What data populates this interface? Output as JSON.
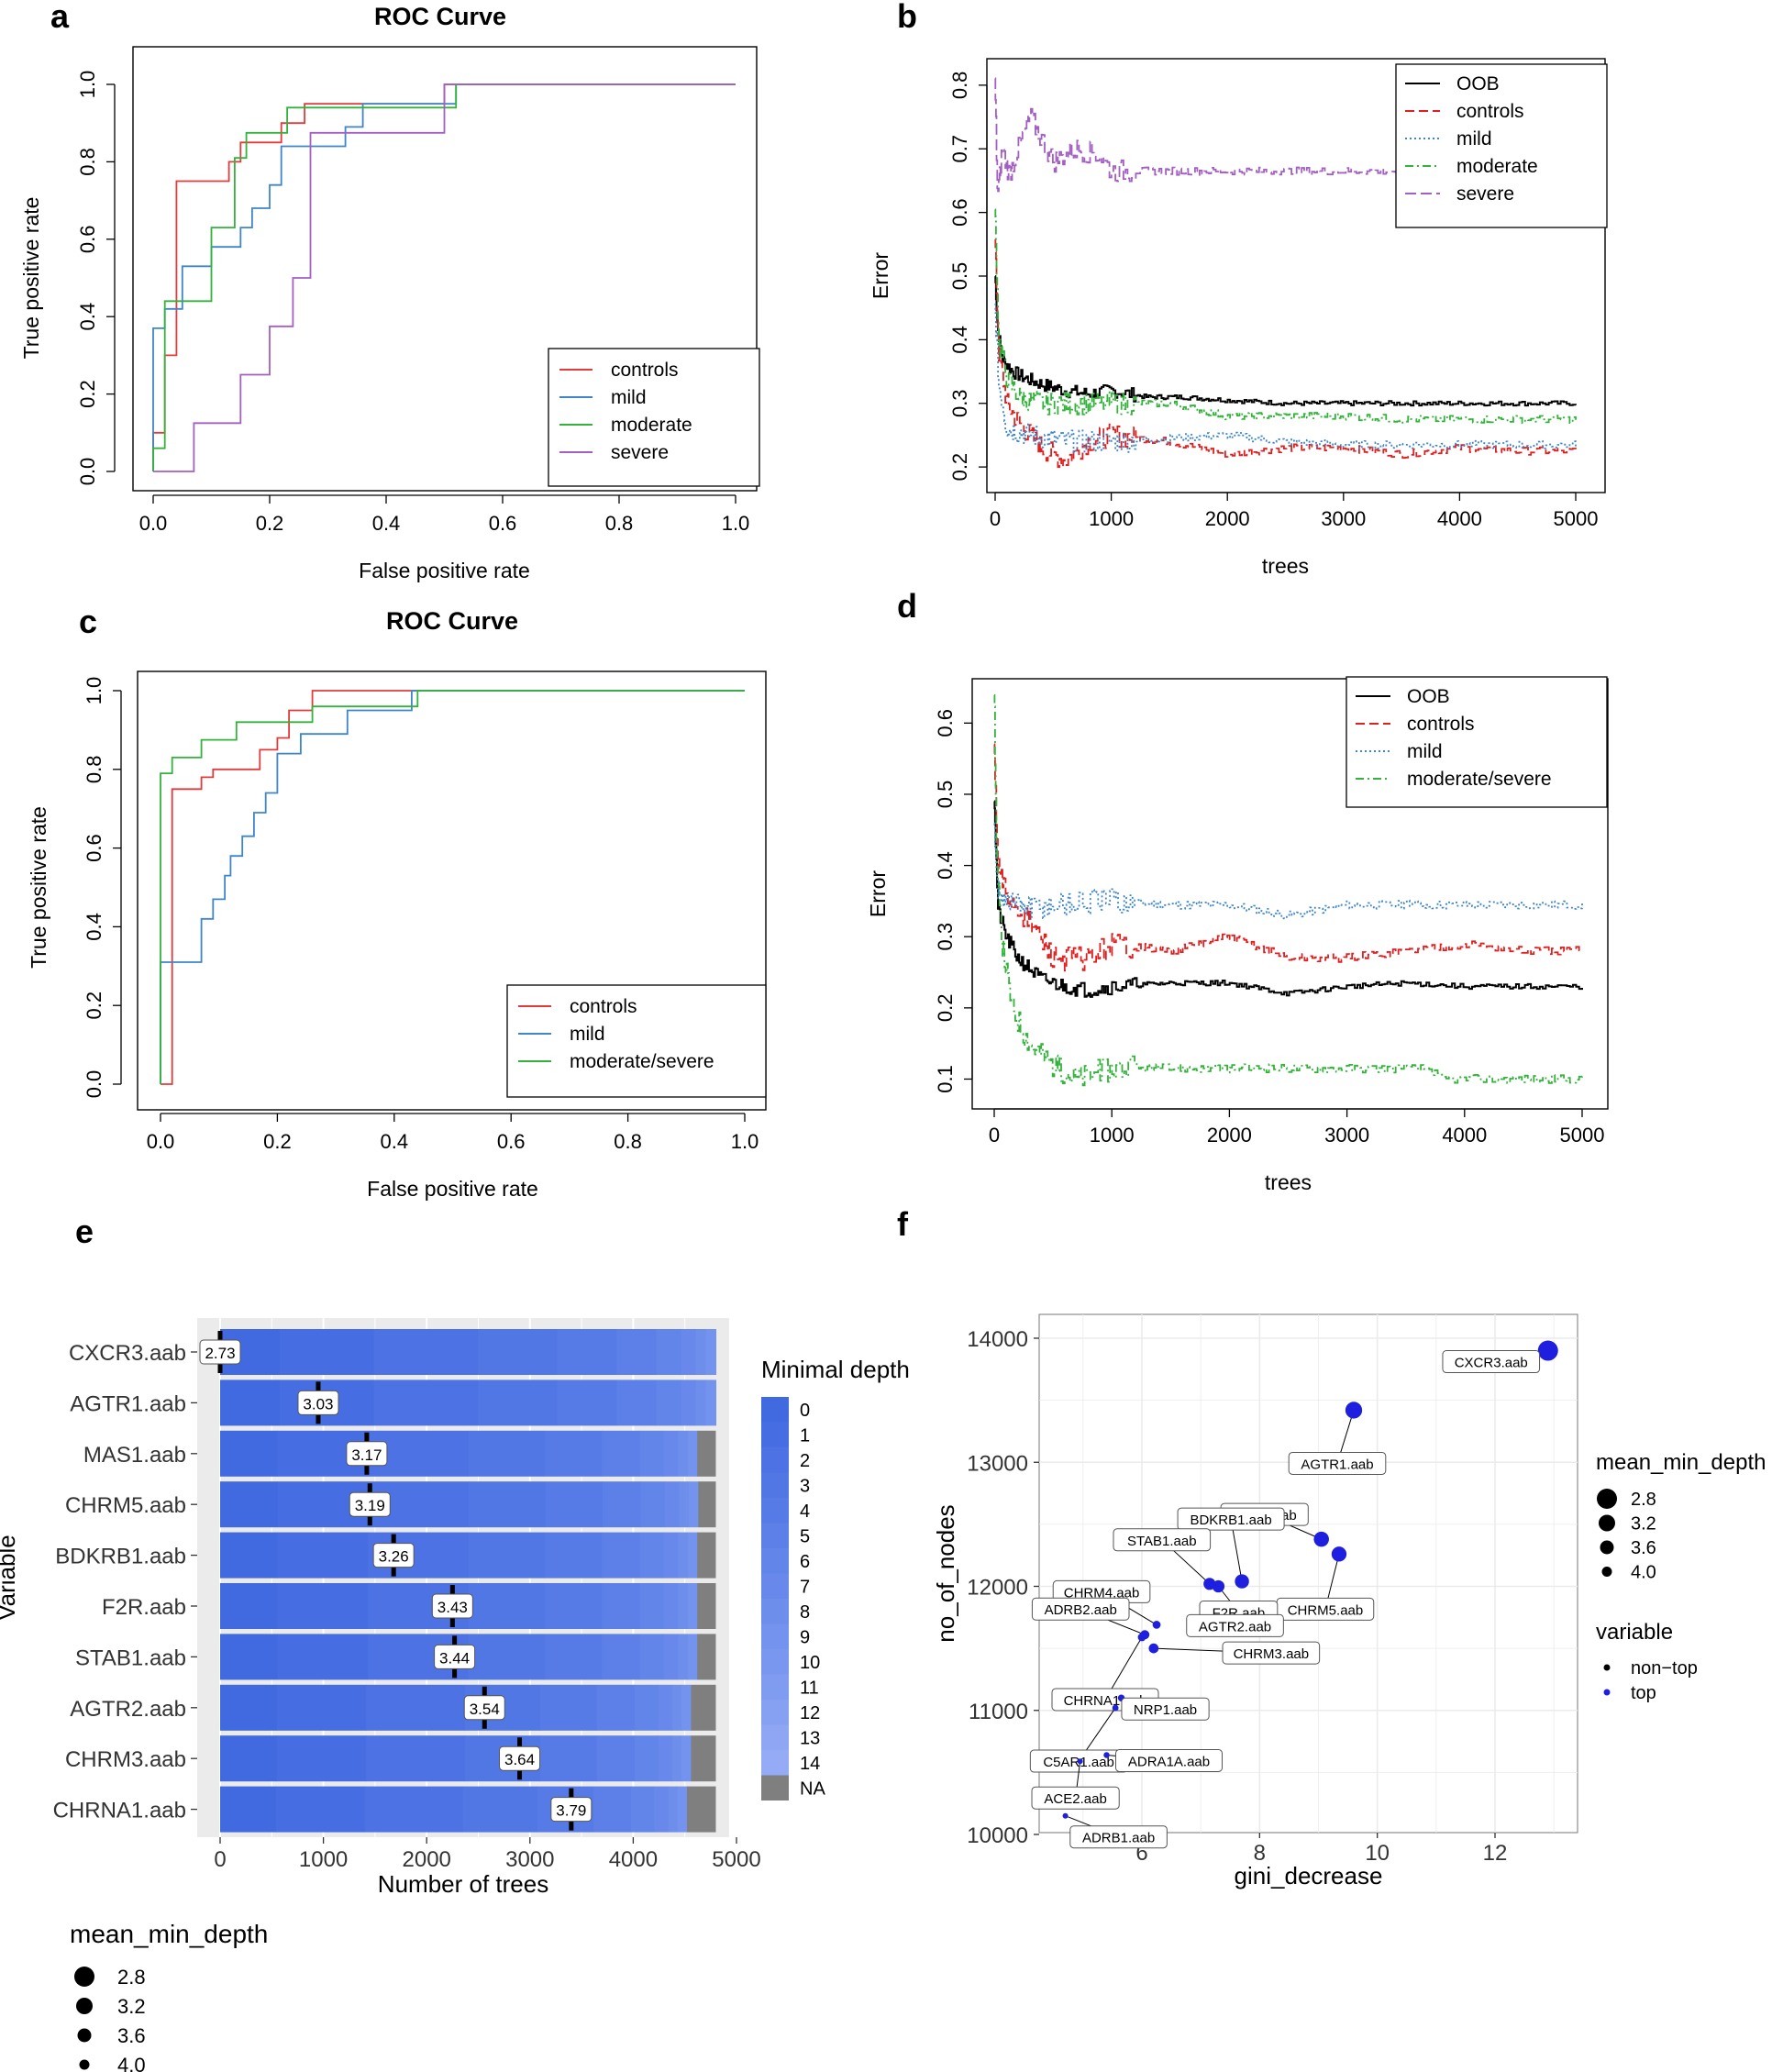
{
  "chart_data": [
    {
      "panel": "a",
      "type": "line",
      "title": "ROC Curve",
      "xlabel": "False positive rate",
      "ylabel": "True positive rate",
      "xlim": [
        0,
        1
      ],
      "ylim": [
        0,
        1
      ],
      "xticks": [
        "0.0",
        "0.2",
        "0.4",
        "0.6",
        "0.8",
        "1.0"
      ],
      "yticks": [
        "0.0",
        "0.2",
        "0.4",
        "0.6",
        "0.8",
        "1.0"
      ],
      "legend": "bottom-right",
      "series": [
        {
          "name": "controls",
          "color": "#e23b3b",
          "x": [
            0,
            0,
            0.02,
            0.02,
            0.04,
            0.04,
            0.07,
            0.07,
            0.13,
            0.13,
            0.15,
            0.15,
            0.22,
            0.22,
            0.26,
            0.26,
            0.35,
            0.35,
            0.5,
            0.5,
            1.0
          ],
          "y": [
            0,
            0.1,
            0.1,
            0.3,
            0.3,
            0.75,
            0.75,
            0.75,
            0.75,
            0.8,
            0.8,
            0.85,
            0.85,
            0.9,
            0.9,
            0.95,
            0.95,
            0.95,
            0.95,
            1.0,
            1.0
          ]
        },
        {
          "name": "mild",
          "color": "#3f86c9",
          "x": [
            0,
            0,
            0.02,
            0.02,
            0.05,
            0.05,
            0.1,
            0.1,
            0.15,
            0.15,
            0.17,
            0.17,
            0.2,
            0.2,
            0.22,
            0.22,
            0.28,
            0.28,
            0.33,
            0.33,
            0.36,
            0.36,
            0.5,
            0.5,
            0.52,
            0.52,
            1.0
          ],
          "y": [
            0,
            0.37,
            0.37,
            0.42,
            0.42,
            0.53,
            0.53,
            0.58,
            0.58,
            0.63,
            0.63,
            0.68,
            0.68,
            0.74,
            0.74,
            0.84,
            0.84,
            0.84,
            0.84,
            0.89,
            0.89,
            0.95,
            0.95,
            0.95,
            0.95,
            1.0,
            1.0
          ]
        },
        {
          "name": "moderate",
          "color": "#33b33b",
          "x": [
            0,
            0,
            0.02,
            0.02,
            0.04,
            0.04,
            0.1,
            0.1,
            0.14,
            0.14,
            0.16,
            0.16,
            0.23,
            0.23,
            0.35,
            0.35,
            0.52,
            0.52,
            1.0
          ],
          "y": [
            0,
            0.06,
            0.06,
            0.44,
            0.44,
            0.44,
            0.44,
            0.63,
            0.63,
            0.81,
            0.81,
            0.875,
            0.875,
            0.94,
            0.94,
            0.94,
            0.94,
            1.0,
            1.0
          ]
        },
        {
          "name": "severe",
          "color": "#a35fc2",
          "x": [
            0,
            0,
            0.07,
            0.07,
            0.15,
            0.15,
            0.2,
            0.2,
            0.24,
            0.24,
            0.27,
            0.27,
            0.3,
            0.3,
            0.5,
            0.5,
            1.0
          ],
          "y": [
            0,
            0,
            0,
            0.125,
            0.125,
            0.25,
            0.25,
            0.375,
            0.375,
            0.5,
            0.5,
            0.875,
            0.875,
            0.875,
            0.875,
            1.0,
            1.0
          ]
        }
      ]
    },
    {
      "panel": "b",
      "type": "line",
      "title": "",
      "xlabel": "trees",
      "ylabel": "Error",
      "xlim": [
        0,
        5000
      ],
      "ylim": [
        0.18,
        0.82
      ],
      "xticks": [
        "0",
        "1000",
        "2000",
        "3000",
        "4000",
        "5000"
      ],
      "yticks": [
        "0.2",
        "0.3",
        "0.4",
        "0.5",
        "0.6",
        "0.7",
        "0.8"
      ],
      "legend": "top-right",
      "series": [
        {
          "name": "OOB",
          "color": "#000000",
          "x": [
            0,
            20,
            60,
            150,
            250,
            400,
            600,
            800,
            1000,
            1300,
            1600,
            2000,
            2500,
            3000,
            3500,
            4000,
            4500,
            5000
          ],
          "y": [
            0.5,
            0.42,
            0.37,
            0.35,
            0.34,
            0.33,
            0.32,
            0.315,
            0.32,
            0.31,
            0.31,
            0.305,
            0.3,
            0.3,
            0.3,
            0.3,
            0.3,
            0.3
          ]
        },
        {
          "name": "controls",
          "color": "#e02020",
          "x": [
            0,
            30,
            100,
            200,
            400,
            600,
            800,
            1000,
            1500,
            2000,
            2500,
            3000,
            3500,
            4000,
            4500,
            5000
          ],
          "y": [
            0.55,
            0.38,
            0.3,
            0.27,
            0.23,
            0.21,
            0.24,
            0.25,
            0.24,
            0.22,
            0.23,
            0.23,
            0.22,
            0.23,
            0.225,
            0.225
          ]
        },
        {
          "name": "mild",
          "color": "#3f86c9",
          "x": [
            0,
            30,
            100,
            300,
            600,
            1000,
            1500,
            2000,
            2500,
            3000,
            3500,
            4000,
            4500,
            5000
          ],
          "y": [
            0.45,
            0.33,
            0.26,
            0.25,
            0.24,
            0.24,
            0.245,
            0.25,
            0.24,
            0.235,
            0.235,
            0.235,
            0.235,
            0.235
          ]
        },
        {
          "name": "moderate",
          "color": "#33b33b",
          "x": [
            0,
            30,
            100,
            200,
            400,
            700,
            1000,
            1500,
            2000,
            2500,
            3000,
            3500,
            4000,
            4500,
            5000
          ],
          "y": [
            0.6,
            0.4,
            0.34,
            0.31,
            0.3,
            0.3,
            0.3,
            0.3,
            0.28,
            0.28,
            0.28,
            0.275,
            0.275,
            0.275,
            0.275
          ]
        },
        {
          "name": "severe",
          "color": "#a35fc2",
          "x": [
            0,
            20,
            60,
            120,
            200,
            300,
            500,
            700,
            900,
            1000,
            2000,
            3000,
            4000,
            5000
          ],
          "y": [
            0.8,
            0.62,
            0.7,
            0.66,
            0.7,
            0.75,
            0.68,
            0.7,
            0.69,
            0.665,
            0.665,
            0.665,
            0.665,
            0.665
          ]
        }
      ]
    },
    {
      "panel": "c",
      "type": "line",
      "title": "ROC Curve",
      "xlabel": "False positive rate",
      "ylabel": "True positive rate",
      "xlim": [
        0,
        1
      ],
      "ylim": [
        0,
        1
      ],
      "xticks": [
        "0.0",
        "0.2",
        "0.4",
        "0.6",
        "0.8",
        "1.0"
      ],
      "yticks": [
        "0.0",
        "0.2",
        "0.4",
        "0.6",
        "0.8",
        "1.0"
      ],
      "legend": "bottom-right",
      "series": [
        {
          "name": "controls",
          "color": "#e23b3b",
          "x": [
            0,
            0.02,
            0.02,
            0.07,
            0.07,
            0.09,
            0.09,
            0.17,
            0.17,
            0.2,
            0.2,
            0.22,
            0.22,
            0.26,
            0.26,
            0.43,
            0.43,
            1.0
          ],
          "y": [
            0,
            0,
            0.75,
            0.75,
            0.78,
            0.78,
            0.8,
            0.8,
            0.85,
            0.85,
            0.88,
            0.88,
            0.95,
            0.95,
            1.0,
            1.0,
            1.0,
            1.0
          ]
        },
        {
          "name": "mild",
          "color": "#3f86c9",
          "x": [
            0,
            0,
            0.07,
            0.07,
            0.09,
            0.09,
            0.11,
            0.11,
            0.12,
            0.12,
            0.14,
            0.14,
            0.16,
            0.16,
            0.18,
            0.18,
            0.2,
            0.2,
            0.24,
            0.24,
            0.32,
            0.32,
            0.43,
            0.43,
            1.0
          ],
          "y": [
            0,
            0.31,
            0.31,
            0.42,
            0.42,
            0.47,
            0.47,
            0.53,
            0.53,
            0.58,
            0.58,
            0.63,
            0.63,
            0.69,
            0.69,
            0.74,
            0.74,
            0.84,
            0.84,
            0.89,
            0.89,
            0.95,
            0.95,
            1.0,
            1.0
          ]
        },
        {
          "name": "moderate/severe",
          "color": "#33b33b",
          "x": [
            0,
            0,
            0.02,
            0.02,
            0.07,
            0.07,
            0.13,
            0.13,
            0.26,
            0.26,
            0.44,
            0.44,
            1.0
          ],
          "y": [
            0,
            0.79,
            0.79,
            0.83,
            0.83,
            0.875,
            0.875,
            0.92,
            0.92,
            0.96,
            0.96,
            1.0,
            1.0
          ]
        }
      ]
    },
    {
      "panel": "d",
      "type": "line",
      "title": "",
      "xlabel": "trees",
      "ylabel": "Error",
      "xlim": [
        0,
        5000
      ],
      "ylim": [
        0.08,
        0.67
      ],
      "xticks": [
        "0",
        "1000",
        "2000",
        "3000",
        "4000",
        "5000"
      ],
      "yticks": [
        "0.1",
        "0.2",
        "0.3",
        "0.4",
        "0.5",
        "0.6"
      ],
      "legend": "top-right",
      "series": [
        {
          "name": "OOB",
          "color": "#000000",
          "x": [
            0,
            30,
            100,
            200,
            400,
            600,
            800,
            1000,
            1500,
            2000,
            2500,
            3000,
            3500,
            4000,
            4500,
            5000
          ],
          "y": [
            0.5,
            0.34,
            0.3,
            0.27,
            0.24,
            0.23,
            0.225,
            0.23,
            0.235,
            0.235,
            0.22,
            0.23,
            0.235,
            0.23,
            0.23,
            0.23
          ]
        },
        {
          "name": "controls",
          "color": "#e02020",
          "x": [
            0,
            30,
            100,
            300,
            500,
            800,
            1000,
            1500,
            2000,
            2500,
            3000,
            3500,
            4000,
            4500,
            5000
          ],
          "y": [
            0.56,
            0.4,
            0.36,
            0.32,
            0.27,
            0.27,
            0.29,
            0.28,
            0.3,
            0.27,
            0.27,
            0.28,
            0.29,
            0.28,
            0.28
          ]
        },
        {
          "name": "mild",
          "color": "#3f86c9",
          "x": [
            0,
            30,
            100,
            300,
            600,
            1000,
            1500,
            2000,
            2500,
            3000,
            3500,
            4000,
            4500,
            5000
          ],
          "y": [
            0.45,
            0.37,
            0.35,
            0.34,
            0.345,
            0.35,
            0.345,
            0.345,
            0.33,
            0.345,
            0.345,
            0.345,
            0.345,
            0.345
          ]
        },
        {
          "name": "moderate/severe",
          "color": "#33b33b",
          "x": [
            0,
            20,
            60,
            150,
            300,
            500,
            700,
            1000,
            2000,
            3000,
            3700,
            3800,
            4500,
            5000
          ],
          "y": [
            0.65,
            0.4,
            0.3,
            0.2,
            0.15,
            0.12,
            0.1,
            0.115,
            0.115,
            0.115,
            0.115,
            0.1,
            0.1,
            0.1
          ]
        }
      ]
    },
    {
      "panel": "e",
      "type": "bar",
      "title": "",
      "xlabel": "Number of trees",
      "ylabel": "Variable",
      "xlim": [
        0,
        5000
      ],
      "xticks": [
        "0",
        "1000",
        "2000",
        "3000",
        "4000",
        "5000"
      ],
      "categories": [
        "CXCR3.aab",
        "AGTR1.aab",
        "MAS1.aab",
        "CHRM5.aab",
        "BDKRB1.aab",
        "F2R.aab",
        "STAB1.aab",
        "AGTR2.aab",
        "CHRM3.aab",
        "CHRNA1.aab"
      ],
      "mean_values": [
        2.73,
        3.03,
        3.17,
        3.19,
        3.26,
        3.43,
        3.44,
        3.54,
        3.64,
        3.79
      ],
      "mean_labels": [
        "2.73",
        "3.03",
        "3.17",
        "3.19",
        "3.26",
        "3.43",
        "3.44",
        "3.54",
        "3.64",
        "3.79"
      ],
      "mean_marker_trees": [
        0,
        950,
        1420,
        1450,
        1680,
        2250,
        2270,
        2560,
        2900,
        3400
      ],
      "na_start_trees": [
        4800,
        4800,
        4620,
        4630,
        4620,
        4620,
        4620,
        4560,
        4560,
        4520
      ],
      "total_trees": 4800,
      "legend_title": "Minimal depth",
      "depth_levels": [
        "0",
        "1",
        "2",
        "3",
        "4",
        "5",
        "6",
        "7",
        "8",
        "9",
        "10",
        "11",
        "12",
        "13",
        "14",
        "NA"
      ],
      "depth_colors": [
        "#4169e0",
        "#466ee2",
        "#4c72e3",
        "#5177e5",
        "#577be6",
        "#5c80e8",
        "#6285e9",
        "#6889eb",
        "#6e8eec",
        "#7493ee",
        "#7a97ef",
        "#809cf0",
        "#87a1f2",
        "#8ea6f3",
        "#95abf5",
        "#7f7f7f"
      ],
      "size_legend_title": "mean_min_depth",
      "size_legend_values": [
        "2.8",
        "3.2",
        "3.6",
        "4.0"
      ]
    },
    {
      "panel": "f",
      "type": "scatter",
      "title": "",
      "xlabel": "gini_decrease",
      "ylabel": "no_of_nodes",
      "xlim": [
        4.2,
        13.1
      ],
      "ylim": [
        9980,
        14150
      ],
      "xticks": [
        "6",
        "8",
        "10",
        "12"
      ],
      "yticks": [
        "10000",
        "11000",
        "12000",
        "13000",
        "14000"
      ],
      "points": [
        {
          "label": "CXCR3.aab",
          "x": 12.9,
          "y": 13900,
          "depth": 2.73
        },
        {
          "label": "AGTR1.aab",
          "x": 9.6,
          "y": 13420,
          "depth": 3.03
        },
        {
          "label": "MAS1.aab",
          "x": 9.05,
          "y": 12380,
          "depth": 3.17
        },
        {
          "label": "CHRM5.aab",
          "x": 9.35,
          "y": 12260,
          "depth": 3.19
        },
        {
          "label": "BDKRB1.aab",
          "x": 7.7,
          "y": 12040,
          "depth": 3.26
        },
        {
          "label": "STAB1.aab",
          "x": 7.15,
          "y": 12020,
          "depth": 3.44
        },
        {
          "label": "F2R.aab",
          "x": 7.3,
          "y": 12000,
          "depth": 3.43
        },
        {
          "label": "CHRM4.aab",
          "x": 6.25,
          "y": 11690,
          "depth": 3.8
        },
        {
          "label": "AGTR2.aab",
          "x": 6.85,
          "y": 11720,
          "depth": 3.54
        },
        {
          "label": "ADRB2.aab",
          "x": 6.05,
          "y": 11610,
          "depth": 3.7
        },
        {
          "label": "CHRNA1.aab",
          "x": 6.0,
          "y": 11590,
          "depth": 3.79
        },
        {
          "label": "CHRM3.aab",
          "x": 6.2,
          "y": 11500,
          "depth": 3.64
        },
        {
          "label": "NRP1.aab",
          "x": 5.65,
          "y": 11100,
          "depth": 3.9
        },
        {
          "label": "C5AR1.aab",
          "x": 5.55,
          "y": 11020,
          "depth": 3.95
        },
        {
          "label": "ADRA1A.aab",
          "x": 5.4,
          "y": 10640,
          "depth": 3.98
        },
        {
          "label": "ACE2.aab",
          "x": 4.95,
          "y": 10590,
          "depth": 4.1
        },
        {
          "label": "ADRB1.aab",
          "x": 4.7,
          "y": 10150,
          "depth": 4.2
        }
      ],
      "size_legend_title": "mean_min_depth",
      "size_legend_values": [
        "2.8",
        "3.2",
        "3.6",
        "4.0"
      ],
      "color_legend_title": "variable",
      "color_legend": [
        {
          "name": "non−top",
          "color": "#000000"
        },
        {
          "name": "top",
          "color": "#1f1fe0"
        }
      ]
    }
  ]
}
